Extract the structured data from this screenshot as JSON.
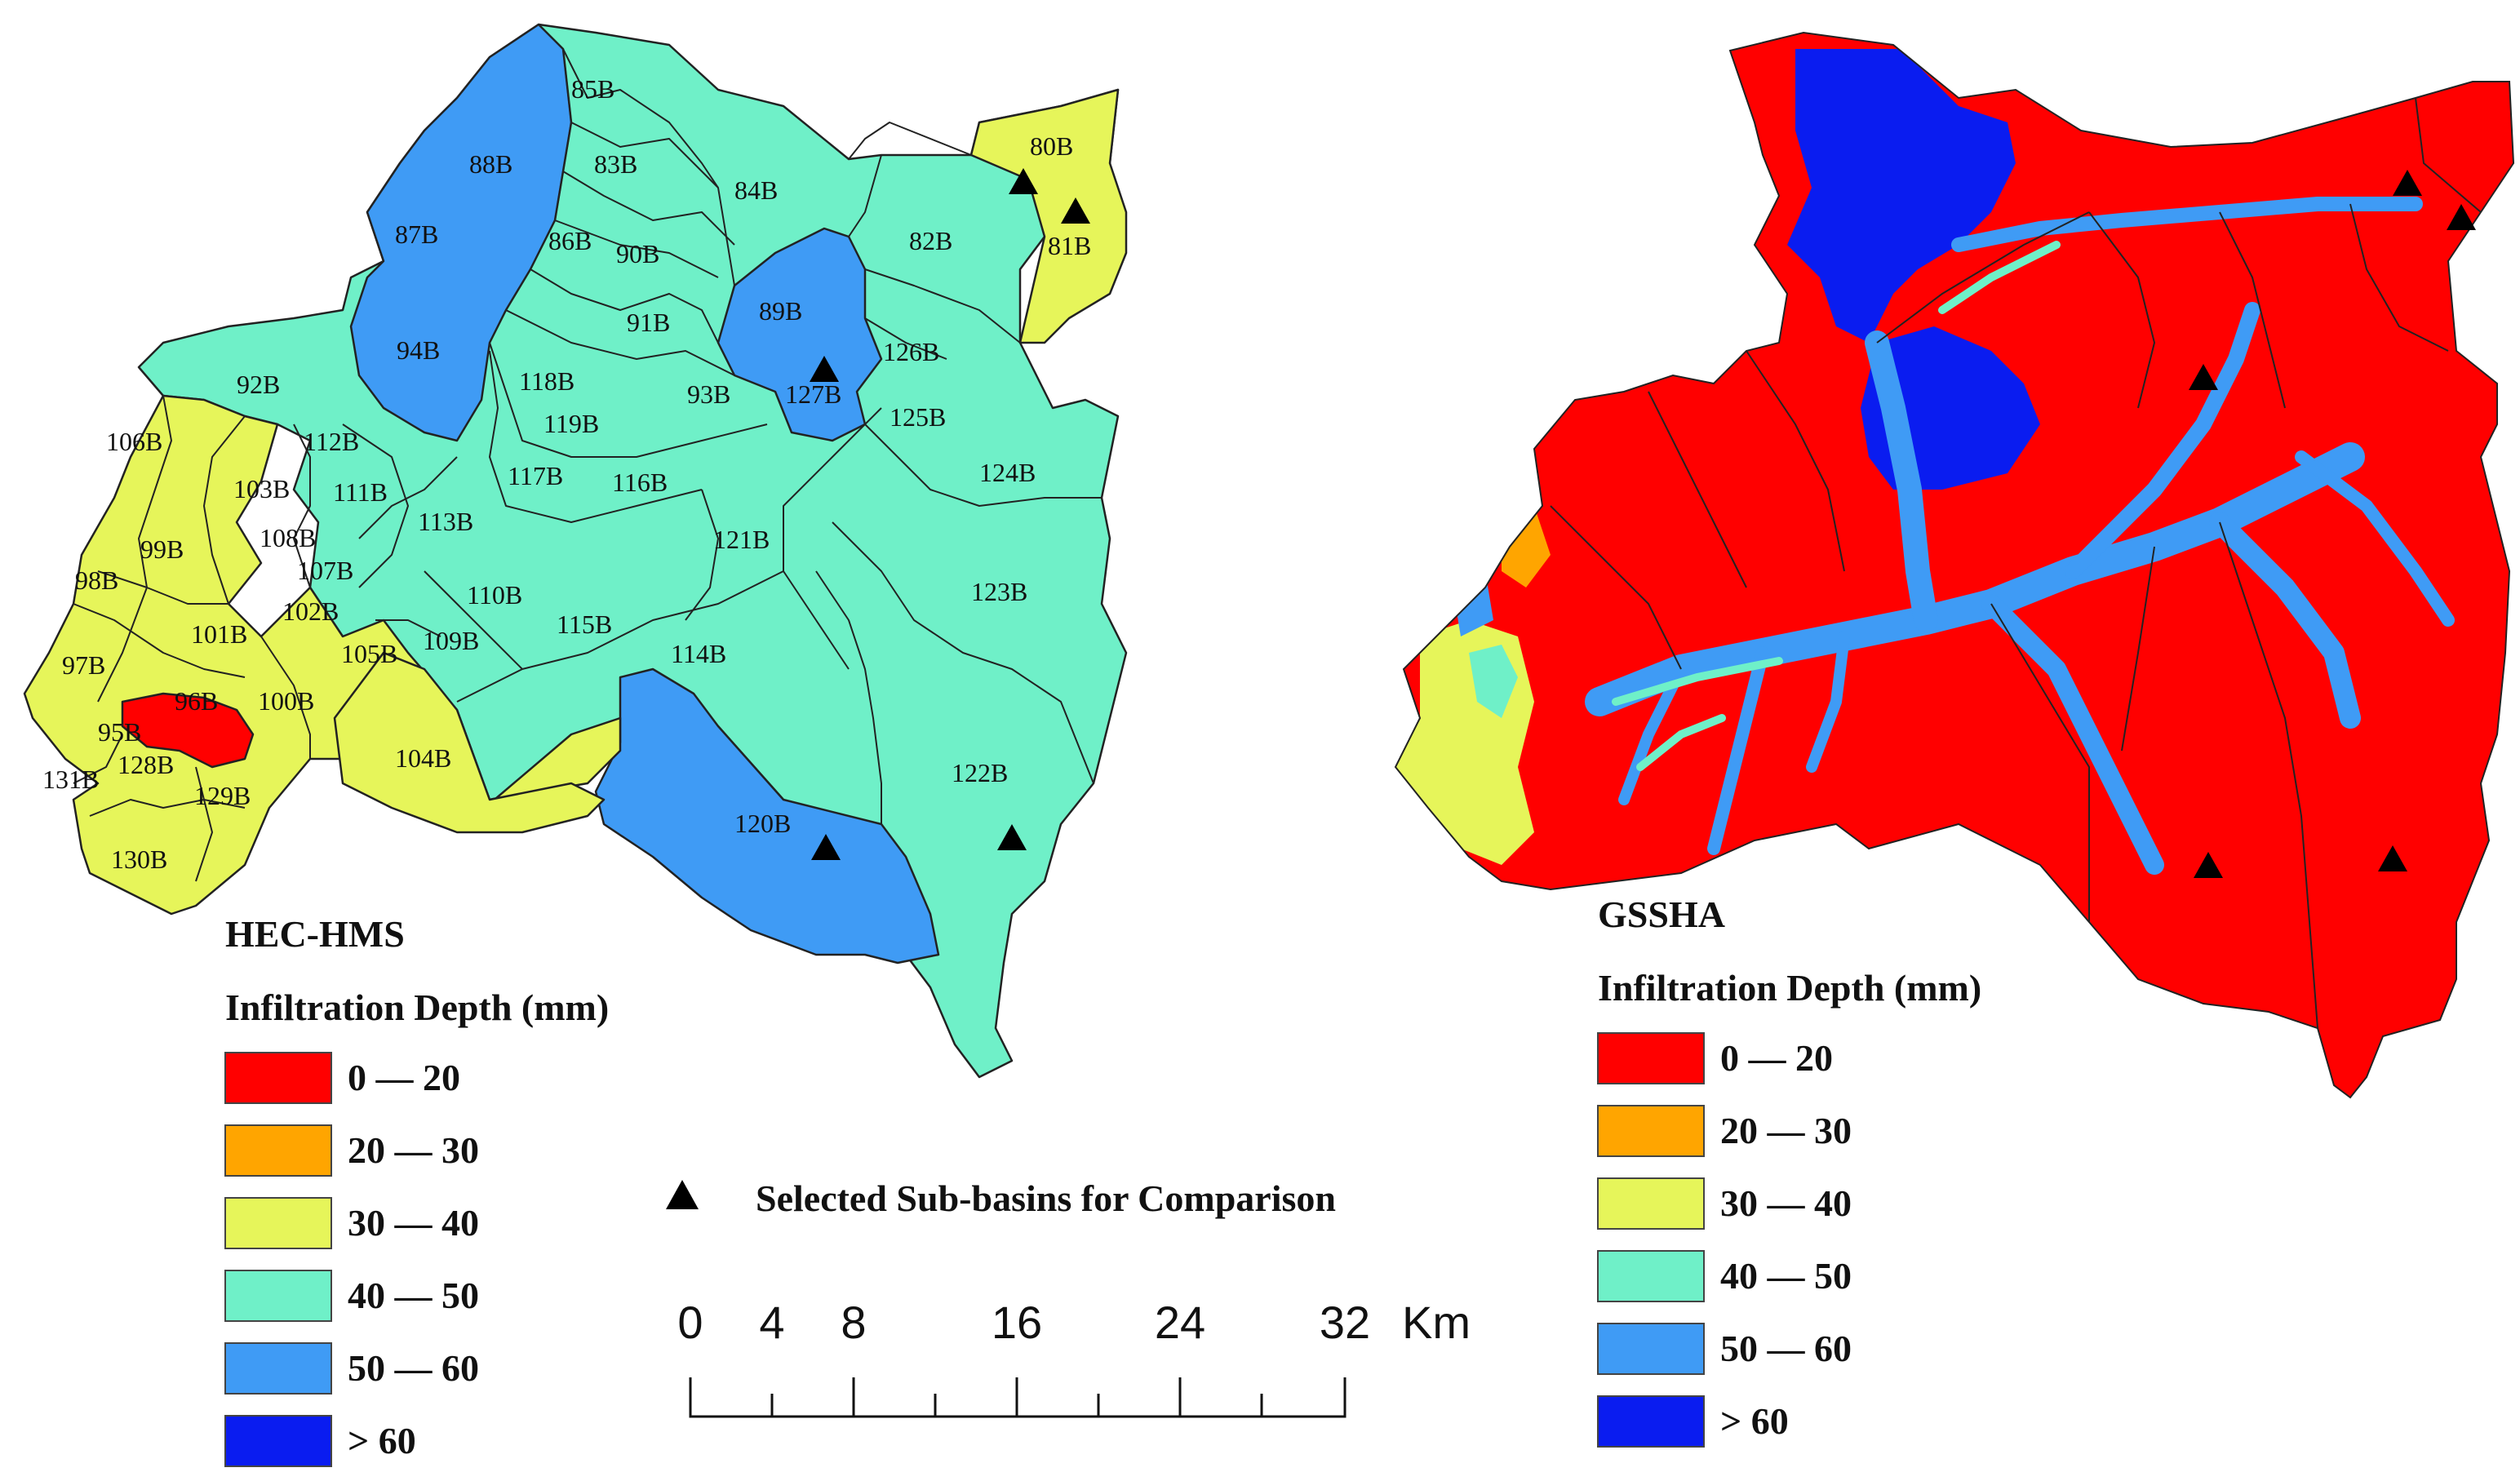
{
  "legend_classes": [
    {
      "label": "0 — 20",
      "color": "#ff0000"
    },
    {
      "label": "20 — 30",
      "color": "#ffa500"
    },
    {
      "label": "30 — 40",
      "color": "#e6f55a"
    },
    {
      "label": "40 — 50",
      "color": "#6ff0c8"
    },
    {
      "label": "50 — 60",
      "color": "#3f9bf5"
    },
    {
      "label": "> 60",
      "color": "#0a1cf0"
    }
  ],
  "left_map": {
    "model": "HEC-HMS",
    "legend_title": "Infiltration Depth (mm)",
    "subbasins": [
      {
        "id": "85B",
        "cls": "40 — 50"
      },
      {
        "id": "83B",
        "cls": "40 — 50"
      },
      {
        "id": "84B",
        "cls": "40 — 50"
      },
      {
        "id": "80B",
        "cls": "30 — 40"
      },
      {
        "id": "88B",
        "cls": "50 — 60"
      },
      {
        "id": "87B",
        "cls": "50 — 60"
      },
      {
        "id": "86B",
        "cls": "40 — 50"
      },
      {
        "id": "90B",
        "cls": "40 — 50"
      },
      {
        "id": "82B",
        "cls": "40 — 50"
      },
      {
        "id": "81B",
        "cls": "30 — 40"
      },
      {
        "id": "89B",
        "cls": "50 — 60"
      },
      {
        "id": "91B",
        "cls": "40 — 50"
      },
      {
        "id": "94B",
        "cls": "50 — 60"
      },
      {
        "id": "126B",
        "cls": "40 — 50"
      },
      {
        "id": "92B",
        "cls": "40 — 50"
      },
      {
        "id": "118B",
        "cls": "40 — 50"
      },
      {
        "id": "93B",
        "cls": "40 — 50"
      },
      {
        "id": "127B",
        "cls": "50 — 60"
      },
      {
        "id": "125B",
        "cls": "40 — 50"
      },
      {
        "id": "119B",
        "cls": "40 — 50"
      },
      {
        "id": "106B",
        "cls": "30 — 40"
      },
      {
        "id": "112B",
        "cls": "40 — 50"
      },
      {
        "id": "117B",
        "cls": "40 — 50"
      },
      {
        "id": "116B",
        "cls": "40 — 50"
      },
      {
        "id": "124B",
        "cls": "40 — 50"
      },
      {
        "id": "103B",
        "cls": "40 — 50"
      },
      {
        "id": "111B",
        "cls": "40 — 50"
      },
      {
        "id": "113B",
        "cls": "40 — 50"
      },
      {
        "id": "121B",
        "cls": "40 — 50"
      },
      {
        "id": "99B",
        "cls": "30 — 40"
      },
      {
        "id": "108B",
        "cls": "40 — 50"
      },
      {
        "id": "107B",
        "cls": "40 — 50"
      },
      {
        "id": "98B",
        "cls": "30 — 40"
      },
      {
        "id": "110B",
        "cls": "40 — 50"
      },
      {
        "id": "123B",
        "cls": "40 — 50"
      },
      {
        "id": "102B",
        "cls": "30 — 40"
      },
      {
        "id": "101B",
        "cls": "30 — 40"
      },
      {
        "id": "115B",
        "cls": "40 — 50"
      },
      {
        "id": "97B",
        "cls": "30 — 40"
      },
      {
        "id": "109B",
        "cls": "40 — 50"
      },
      {
        "id": "105B",
        "cls": "30 — 40"
      },
      {
        "id": "114B",
        "cls": "40 — 50"
      },
      {
        "id": "96B",
        "cls": "0 — 20"
      },
      {
        "id": "100B",
        "cls": "30 — 40"
      },
      {
        "id": "95B",
        "cls": "30 — 40"
      },
      {
        "id": "128B",
        "cls": "30 — 40"
      },
      {
        "id": "104B",
        "cls": "30 — 40"
      },
      {
        "id": "131B",
        "cls": "30 — 40"
      },
      {
        "id": "122B",
        "cls": "40 — 50"
      },
      {
        "id": "129B",
        "cls": "30 — 40"
      },
      {
        "id": "120B",
        "cls": "50 — 60"
      },
      {
        "id": "130B",
        "cls": "30 — 40"
      }
    ],
    "selected_subbasins": [
      "80B",
      "81B",
      "127B",
      "120B",
      "122B"
    ]
  },
  "right_map": {
    "model": "GSSHA",
    "legend_title": "Infiltration Depth (mm)"
  },
  "selected_legend_label": "Selected Sub-basins for Comparison",
  "scale_bar": {
    "ticks": [
      "0",
      "4",
      "8",
      "16",
      "24",
      "32"
    ],
    "unit": "Km"
  }
}
